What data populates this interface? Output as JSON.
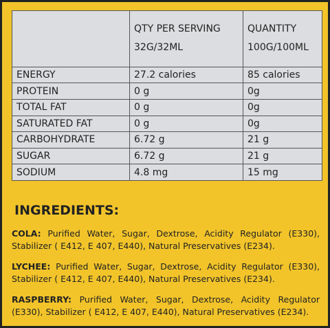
{
  "table": {
    "header": [
      {
        "line1": "QTY PER SERVING",
        "line2": "32G/32ML"
      },
      {
        "line1": "QUANTITY",
        "line2": "100G/100ML"
      }
    ],
    "rows": [
      [
        "ENERGY",
        "27.2 calories",
        "85 calories"
      ],
      [
        "PROTEIN",
        "0 g",
        "0g"
      ],
      [
        "TOTAL FAT",
        "0 g",
        "0g"
      ],
      [
        "SATURATED FAT",
        "0 g",
        "0g"
      ],
      [
        "CARBOHYDRATE",
        "6.72 g",
        "21 g"
      ],
      [
        "SUGAR",
        "6.72 g",
        "21 g"
      ],
      [
        "SODIUM",
        "4.8 mg",
        "15 mg"
      ]
    ]
  },
  "ingredients": {
    "title": "INGREDIENTS:",
    "items": [
      {
        "name": "COLA:",
        "text": "Purified Water, Sugar, Dextrose, Acidity Regulator (E330), Stabilizer ( E412, E 407, E440), Natural Preservatives (E234)."
      },
      {
        "name": "LYCHEE:",
        "text": "Purified Water, Sugar, Dextrose, Acidity Regulator (E330), Stabilizer ( E412, E 407, E440), Natural Preservatives (E234)."
      },
      {
        "name": "RASPBERRY:",
        "text": "Purified Water, Sugar, Dextrose, Acidity Regulator (E330), Stabilizer ( E412, E 407, E440), Natural Preservatives (E234)."
      }
    ]
  }
}
